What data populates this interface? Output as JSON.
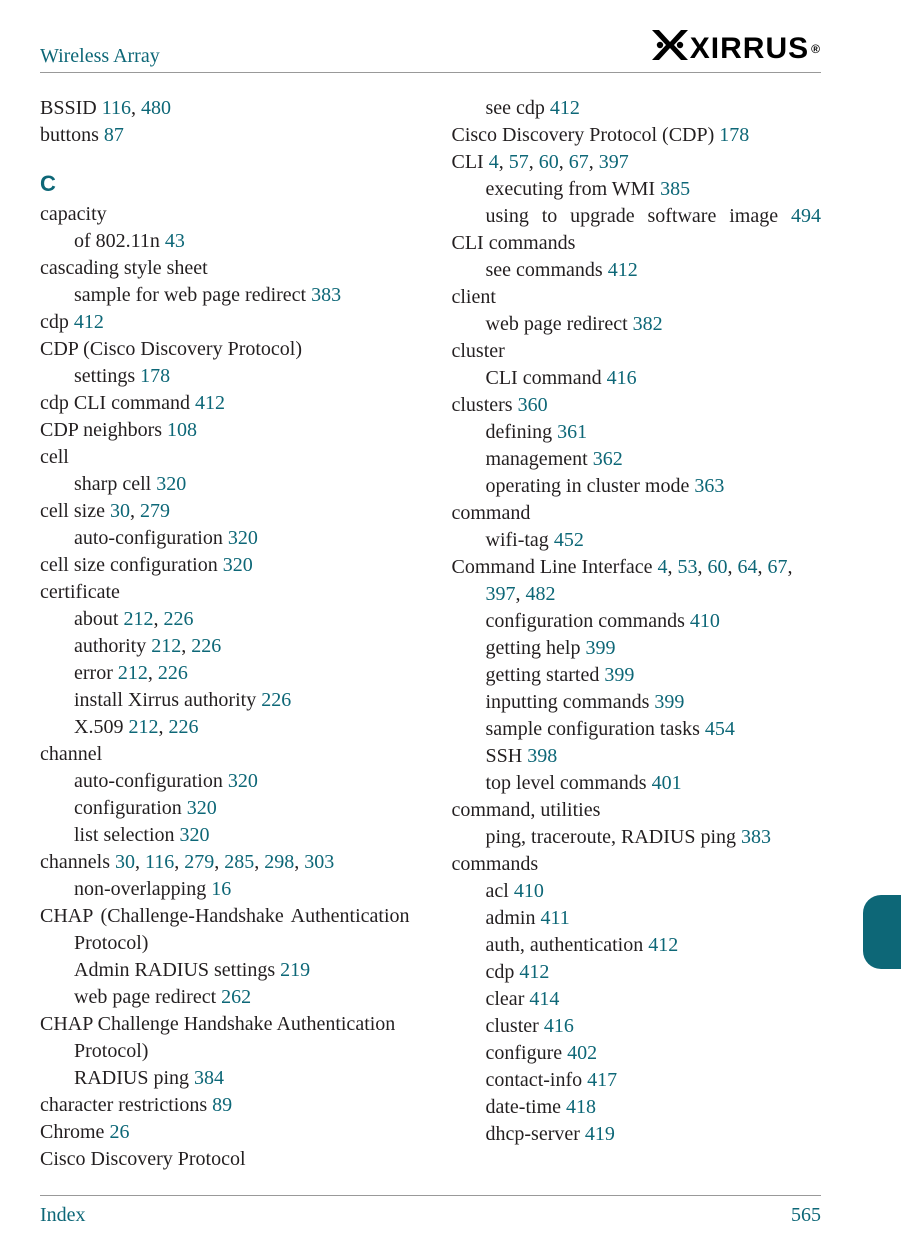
{
  "colors": {
    "accent": "#0d6777",
    "text": "#231f20",
    "rule": "#999999",
    "background": "#ffffff",
    "logo": "#000000"
  },
  "fonts": {
    "body_family": "Palatino Linotype",
    "body_size_pt": 15,
    "heading_family": "Arial",
    "section_letter_size_pt": 17
  },
  "header": {
    "title": "Wireless Array",
    "brand": "XIRRUS",
    "brand_registered": "®"
  },
  "footer": {
    "label": "Index",
    "page": "565"
  },
  "left": [
    {
      "parts": [
        {
          "t": "BSSID "
        },
        {
          "p": "116"
        },
        {
          "t": ", "
        },
        {
          "p": "480"
        }
      ]
    },
    {
      "parts": [
        {
          "t": "buttons "
        },
        {
          "p": "87"
        }
      ]
    },
    {
      "section": "C"
    },
    {
      "parts": [
        {
          "t": "capacity"
        }
      ]
    },
    {
      "indent": 1,
      "parts": [
        {
          "t": "of 802.11n "
        },
        {
          "p": "43"
        }
      ]
    },
    {
      "parts": [
        {
          "t": "cascading style sheet"
        }
      ]
    },
    {
      "indent": 1,
      "parts": [
        {
          "t": "sample for web page redirect "
        },
        {
          "p": "383"
        }
      ]
    },
    {
      "parts": [
        {
          "t": "cdp "
        },
        {
          "p": "412"
        }
      ]
    },
    {
      "parts": [
        {
          "t": "CDP (Cisco Discovery Protocol)"
        }
      ]
    },
    {
      "indent": 1,
      "parts": [
        {
          "t": "settings "
        },
        {
          "p": "178"
        }
      ]
    },
    {
      "parts": [
        {
          "t": "cdp CLI command "
        },
        {
          "p": "412"
        }
      ]
    },
    {
      "parts": [
        {
          "t": "CDP neighbors "
        },
        {
          "p": "108"
        }
      ]
    },
    {
      "parts": [
        {
          "t": "cell"
        }
      ]
    },
    {
      "indent": 1,
      "parts": [
        {
          "t": "sharp cell "
        },
        {
          "p": "320"
        }
      ]
    },
    {
      "parts": [
        {
          "t": "cell size "
        },
        {
          "p": "30"
        },
        {
          "t": ", "
        },
        {
          "p": "279"
        }
      ]
    },
    {
      "indent": 1,
      "parts": [
        {
          "t": "auto-configuration "
        },
        {
          "p": "320"
        }
      ]
    },
    {
      "parts": [
        {
          "t": "cell size configuration "
        },
        {
          "p": "320"
        }
      ]
    },
    {
      "parts": [
        {
          "t": "certificate"
        }
      ]
    },
    {
      "indent": 1,
      "parts": [
        {
          "t": "about "
        },
        {
          "p": "212"
        },
        {
          "t": ", "
        },
        {
          "p": "226"
        }
      ]
    },
    {
      "indent": 1,
      "parts": [
        {
          "t": "authority "
        },
        {
          "p": "212"
        },
        {
          "t": ", "
        },
        {
          "p": "226"
        }
      ]
    },
    {
      "indent": 1,
      "parts": [
        {
          "t": "error "
        },
        {
          "p": "212"
        },
        {
          "t": ", "
        },
        {
          "p": "226"
        }
      ]
    },
    {
      "indent": 1,
      "parts": [
        {
          "t": "install Xirrus authority "
        },
        {
          "p": "226"
        }
      ]
    },
    {
      "indent": 1,
      "parts": [
        {
          "t": "X.509 "
        },
        {
          "p": "212"
        },
        {
          "t": ", "
        },
        {
          "p": "226"
        }
      ]
    },
    {
      "parts": [
        {
          "t": "channel"
        }
      ]
    },
    {
      "indent": 1,
      "parts": [
        {
          "t": "auto-configuration "
        },
        {
          "p": "320"
        }
      ]
    },
    {
      "indent": 1,
      "parts": [
        {
          "t": "configuration "
        },
        {
          "p": "320"
        }
      ]
    },
    {
      "indent": 1,
      "parts": [
        {
          "t": "list selection "
        },
        {
          "p": "320"
        }
      ]
    },
    {
      "parts": [
        {
          "t": "channels "
        },
        {
          "p": "30"
        },
        {
          "t": ", "
        },
        {
          "p": "116"
        },
        {
          "t": ", "
        },
        {
          "p": "279"
        },
        {
          "t": ", "
        },
        {
          "p": "285"
        },
        {
          "t": ", "
        },
        {
          "p": "298"
        },
        {
          "t": ", "
        },
        {
          "p": "303"
        }
      ]
    },
    {
      "indent": 1,
      "parts": [
        {
          "t": "non-overlapping "
        },
        {
          "p": "16"
        }
      ]
    },
    {
      "hanging": true,
      "justify": true,
      "parts": [
        {
          "t": "CHAP (Challenge-Handshake Authentication Protocol)"
        }
      ]
    },
    {
      "indent": 1,
      "parts": [
        {
          "t": "Admin RADIUS settings "
        },
        {
          "p": "219"
        }
      ]
    },
    {
      "indent": 1,
      "parts": [
        {
          "t": "web page redirect "
        },
        {
          "p": "262"
        }
      ]
    },
    {
      "hanging": true,
      "parts": [
        {
          "t": "CHAP Challenge Handshake Authentication Protocol)"
        }
      ]
    },
    {
      "indent": 1,
      "parts": [
        {
          "t": "RADIUS ping "
        },
        {
          "p": "384"
        }
      ]
    },
    {
      "parts": [
        {
          "t": "character restrictions "
        },
        {
          "p": "89"
        }
      ]
    },
    {
      "parts": [
        {
          "t": "Chrome "
        },
        {
          "p": "26"
        }
      ]
    },
    {
      "parts": [
        {
          "t": "Cisco Discovery Protocol"
        }
      ]
    }
  ],
  "right": [
    {
      "indent": 1,
      "parts": [
        {
          "t": "see cdp "
        },
        {
          "p": "412"
        }
      ]
    },
    {
      "parts": [
        {
          "t": "Cisco Discovery Protocol (CDP) "
        },
        {
          "p": "178"
        }
      ]
    },
    {
      "parts": [
        {
          "t": "CLI "
        },
        {
          "p": "4"
        },
        {
          "t": ", "
        },
        {
          "p": "57"
        },
        {
          "t": ", "
        },
        {
          "p": "60"
        },
        {
          "t": ", "
        },
        {
          "p": "67"
        },
        {
          "t": ", "
        },
        {
          "p": "397"
        }
      ]
    },
    {
      "indent": 1,
      "parts": [
        {
          "t": "executing from WMI "
        },
        {
          "p": "385"
        }
      ]
    },
    {
      "hangingInd1": true,
      "justify": true,
      "parts": [
        {
          "t": "using to upgrade software image "
        },
        {
          "p": "494"
        }
      ]
    },
    {
      "parts": [
        {
          "t": "CLI commands"
        }
      ]
    },
    {
      "indent": 1,
      "parts": [
        {
          "t": "see commands "
        },
        {
          "p": "412"
        }
      ]
    },
    {
      "parts": [
        {
          "t": "client"
        }
      ]
    },
    {
      "indent": 1,
      "parts": [
        {
          "t": "web page redirect "
        },
        {
          "p": "382"
        }
      ]
    },
    {
      "parts": [
        {
          "t": "cluster"
        }
      ]
    },
    {
      "indent": 1,
      "parts": [
        {
          "t": "CLI command "
        },
        {
          "p": "416"
        }
      ]
    },
    {
      "parts": [
        {
          "t": "clusters "
        },
        {
          "p": "360"
        }
      ]
    },
    {
      "indent": 1,
      "parts": [
        {
          "t": "defining "
        },
        {
          "p": "361"
        }
      ]
    },
    {
      "indent": 1,
      "parts": [
        {
          "t": "management "
        },
        {
          "p": "362"
        }
      ]
    },
    {
      "indent": 1,
      "parts": [
        {
          "t": "operating in cluster mode "
        },
        {
          "p": "363"
        }
      ]
    },
    {
      "parts": [
        {
          "t": "command"
        }
      ]
    },
    {
      "indent": 1,
      "parts": [
        {
          "t": "wifi-tag "
        },
        {
          "p": "452"
        }
      ]
    },
    {
      "hanging": true,
      "parts": [
        {
          "t": "Command Line Interface "
        },
        {
          "p": "4"
        },
        {
          "t": ", "
        },
        {
          "p": "53"
        },
        {
          "t": ", "
        },
        {
          "p": "60"
        },
        {
          "t": ", "
        },
        {
          "p": "64"
        },
        {
          "t": ", "
        },
        {
          "p": "67"
        },
        {
          "t": ", "
        },
        {
          "p": "397"
        },
        {
          "t": ", "
        },
        {
          "p": "482"
        }
      ]
    },
    {
      "indent": 1,
      "parts": [
        {
          "t": "configuration commands "
        },
        {
          "p": "410"
        }
      ]
    },
    {
      "indent": 1,
      "parts": [
        {
          "t": "getting help "
        },
        {
          "p": "399"
        }
      ]
    },
    {
      "indent": 1,
      "parts": [
        {
          "t": "getting started "
        },
        {
          "p": "399"
        }
      ]
    },
    {
      "indent": 1,
      "parts": [
        {
          "t": "inputting commands "
        },
        {
          "p": "399"
        }
      ]
    },
    {
      "indent": 1,
      "parts": [
        {
          "t": "sample configuration tasks "
        },
        {
          "p": "454"
        }
      ]
    },
    {
      "indent": 1,
      "parts": [
        {
          "t": "SSH "
        },
        {
          "p": "398"
        }
      ]
    },
    {
      "indent": 1,
      "parts": [
        {
          "t": "top level commands "
        },
        {
          "p": "401"
        }
      ]
    },
    {
      "parts": [
        {
          "t": "command, utilities"
        }
      ]
    },
    {
      "indent": 1,
      "parts": [
        {
          "t": "ping, traceroute, RADIUS ping "
        },
        {
          "p": "383"
        }
      ]
    },
    {
      "parts": [
        {
          "t": "commands"
        }
      ]
    },
    {
      "indent": 1,
      "parts": [
        {
          "t": "acl "
        },
        {
          "p": "410"
        }
      ]
    },
    {
      "indent": 1,
      "parts": [
        {
          "t": "admin "
        },
        {
          "p": "411"
        }
      ]
    },
    {
      "indent": 1,
      "parts": [
        {
          "t": "auth, authentication "
        },
        {
          "p": "412"
        }
      ]
    },
    {
      "indent": 1,
      "parts": [
        {
          "t": "cdp "
        },
        {
          "p": "412"
        }
      ]
    },
    {
      "indent": 1,
      "parts": [
        {
          "t": "clear "
        },
        {
          "p": "414"
        }
      ]
    },
    {
      "indent": 1,
      "parts": [
        {
          "t": "cluster "
        },
        {
          "p": "416"
        }
      ]
    },
    {
      "indent": 1,
      "parts": [
        {
          "t": "configure "
        },
        {
          "p": "402"
        }
      ]
    },
    {
      "indent": 1,
      "parts": [
        {
          "t": "contact-info "
        },
        {
          "p": "417"
        }
      ]
    },
    {
      "indent": 1,
      "parts": [
        {
          "t": "date-time "
        },
        {
          "p": "418"
        }
      ]
    },
    {
      "indent": 1,
      "parts": [
        {
          "t": "dhcp-server "
        },
        {
          "p": "419"
        }
      ]
    }
  ]
}
